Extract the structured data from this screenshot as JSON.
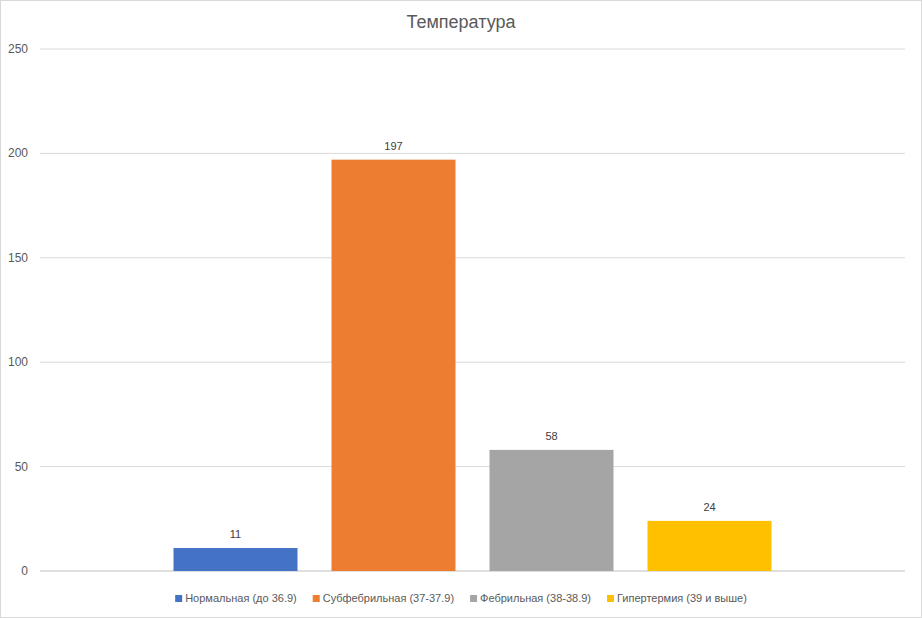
{
  "chart_data": {
    "type": "bar",
    "title": "Температура",
    "categories": [
      "Нормальная (до 36.9)",
      "Субфебрильная (37-37.9)",
      "Фебрильная (38-38.9)",
      "Гипертермия (39 и выше)"
    ],
    "values": [
      11,
      197,
      58,
      24
    ],
    "colors": [
      "#4472c4",
      "#ed7d31",
      "#a5a5a5",
      "#ffc000"
    ],
    "ylim": [
      0,
      250
    ],
    "yticks": [
      0,
      50,
      100,
      150,
      200,
      250
    ],
    "grid": true,
    "data_labels": true,
    "legend": "bottom",
    "tick_labels": "y"
  }
}
